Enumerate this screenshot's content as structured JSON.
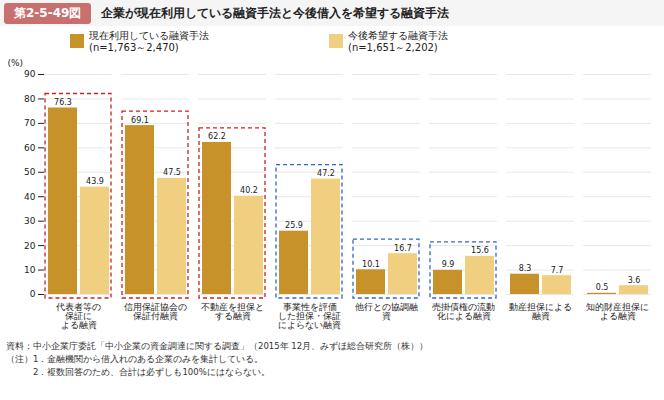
{
  "chart_data": {
    "type": "bar",
    "title": "企業が現在利用している融資手法と今後借入を希望する融資手法",
    "annotations": [
      {
        "text": "第2-5-49図",
        "color": "#c87070"
      },
      {
        "text": "資料：中小企業庁委託「中小企業の資金調達に関する調査」（2015年 12月、みずほ総合研究所（株））"
      },
      {
        "text": "（注）1．金融機関から借入れのある企業のみを集計している。"
      },
      {
        "text": "　　　2．複数回答のため、合計は必ずしも100%にはならない。"
      }
    ],
    "categories": [
      "代表者等の\n保証に\nよる融資",
      "信用保証協会の\n保証付融資",
      "不動産を担保と\nする融資",
      "事業性を評価\nした担保・保証\nによらない融資",
      "他行との協調融\n資",
      "売掛債権の流動\n化による融資",
      "動産担保による\n融資",
      "知的財産担保に\nよる融資"
    ],
    "series": [
      {
        "name": "現在利用している融資手法\n(n=1,763～2,470)",
        "color": "#C8922A",
        "values": [
          76.3,
          69.1,
          62.2,
          25.9,
          10.1,
          9.9,
          8.3,
          0.5
        ]
      },
      {
        "name": "今後希望する融資手法\n(n=1,651～2,202)",
        "color": "#F0D080",
        "values": [
          43.9,
          47.5,
          40.2,
          47.2,
          16.7,
          15.6,
          7.7,
          3.6
        ]
      }
    ],
    "boxes": [
      {
        "color": "#cc2222",
        "line_style": "dashed",
        "categories": [
          "代表者等の\n保証に\nよる融資",
          "信用保証協会の\n保証付融資",
          "不動産を担保と\nする融資"
        ]
      },
      {
        "color": "#3366cc",
        "line_style": "dashed",
        "categories": [
          "事業性を評価\nした担保・保証\nによらない融資",
          "他行との協調融\n資",
          "売掛債権の流動\n化による融資"
        ]
      }
    ],
    "ylabel": "(%)",
    "ylim": [
      0,
      90
    ],
    "yticks": [
      0,
      10,
      20,
      30,
      40,
      50,
      60,
      70,
      80,
      90
    ],
    "grid": true,
    "legend": "top",
    "data_labels": true
  }
}
